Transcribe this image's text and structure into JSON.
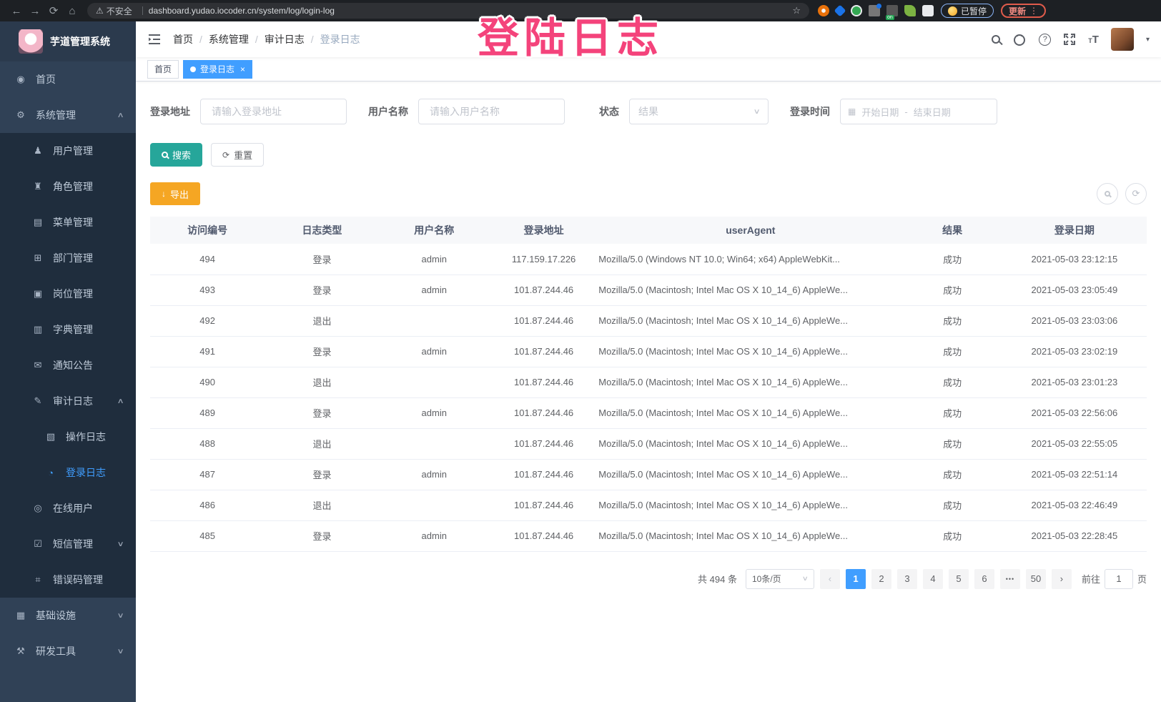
{
  "browser": {
    "security_warning": "不安全",
    "url": "dashboard.yudao.iocoder.cn/system/log/login-log",
    "extensions_badge": "on",
    "paused_badge": "已暂停",
    "update_button": "更新"
  },
  "annotation": {
    "text": "登陆日志",
    "color": "#F4437B"
  },
  "icons": {
    "back": "←",
    "forward": "→",
    "reload": "⟳",
    "home": "⌂",
    "warning": "⚠",
    "star": "☆",
    "kebab": "⋮",
    "close": "×",
    "chevron_up": "∧",
    "chevron_down": "∨",
    "breadcrumb_sep": "/",
    "calendar": "▦",
    "download": "↓",
    "reset": "⟳",
    "refresh": "⟳",
    "prev": "‹",
    "next": "›",
    "caret_down": "▾",
    "help": "?",
    "font_large": "T",
    "font_small": "T"
  },
  "sidebar": {
    "logo_title": "芋道管理系统",
    "items": [
      {
        "id": "home",
        "label": "首页",
        "icon_name": "dashboard-icon",
        "glyph": "◉",
        "level": 1
      },
      {
        "id": "system",
        "label": "系统管理",
        "icon_name": "gear-icon",
        "glyph": "⚙",
        "level": 1,
        "arrow": "up"
      },
      {
        "id": "user",
        "label": "用户管理",
        "icon_name": "user-icon",
        "glyph": "♟",
        "level": 2
      },
      {
        "id": "role",
        "label": "角色管理",
        "icon_name": "role-icon",
        "glyph": "♜",
        "level": 2
      },
      {
        "id": "menu",
        "label": "菜单管理",
        "icon_name": "menu-tree-icon",
        "glyph": "▤",
        "level": 2
      },
      {
        "id": "dept",
        "label": "部门管理",
        "icon_name": "org-tree-icon",
        "glyph": "⊞",
        "level": 2
      },
      {
        "id": "post",
        "label": "岗位管理",
        "icon_name": "badge-icon",
        "glyph": "▣",
        "level": 2
      },
      {
        "id": "dict",
        "label": "字典管理",
        "icon_name": "dict-icon",
        "glyph": "▥",
        "level": 2
      },
      {
        "id": "notice",
        "label": "通知公告",
        "icon_name": "message-icon",
        "glyph": "✉",
        "level": 2
      },
      {
        "id": "audit",
        "label": "审计日志",
        "icon_name": "audit-icon",
        "glyph": "✎",
        "level": 2,
        "arrow": "up"
      },
      {
        "id": "operlog",
        "label": "操作日志",
        "icon_name": "document-icon",
        "glyph": "▧",
        "level": 3
      },
      {
        "id": "loginlog",
        "label": "登录日志",
        "icon_name": "login-log-icon",
        "glyph": "◔",
        "level": 3,
        "active": true
      },
      {
        "id": "online",
        "label": "在线用户",
        "icon_name": "online-icon",
        "glyph": "◎",
        "level": 2
      },
      {
        "id": "sms",
        "label": "短信管理",
        "icon_name": "shield-icon",
        "glyph": "☑",
        "level": 2,
        "arrow": "down"
      },
      {
        "id": "errcode",
        "label": "错误码管理",
        "icon_name": "code-icon",
        "glyph": "⌗",
        "level": 2
      },
      {
        "id": "infra",
        "label": "基础设施",
        "icon_name": "monitor-icon",
        "glyph": "▦",
        "level": 1,
        "arrow": "down"
      },
      {
        "id": "tool",
        "label": "研发工具",
        "icon_name": "tool-icon",
        "glyph": "⚒",
        "level": 1,
        "arrow": "down"
      }
    ]
  },
  "breadcrumb": [
    "首页",
    "系统管理",
    "审计日志",
    "登录日志"
  ],
  "tags": [
    {
      "label": "首页",
      "active": false,
      "closable": false
    },
    {
      "label": "登录日志",
      "active": true,
      "closable": true
    }
  ],
  "filters": {
    "address_label": "登录地址",
    "address_placeholder": "请输入登录地址",
    "username_label": "用户名称",
    "username_placeholder": "请输入用户名称",
    "status_label": "状态",
    "status_placeholder": "结果",
    "time_label": "登录时间",
    "start_placeholder": "开始日期",
    "range_separator": "-",
    "end_placeholder": "结束日期",
    "search_label": "搜索",
    "reset_label": "重置"
  },
  "toolbar": {
    "export_label": "导出"
  },
  "table": {
    "headers": [
      "访问编号",
      "日志类型",
      "用户名称",
      "登录地址",
      "userAgent",
      "结果",
      "登录日期"
    ],
    "rows": [
      [
        "494",
        "登录",
        "admin",
        "117.159.17.226",
        "Mozilla/5.0 (Windows NT 10.0; Win64; x64) AppleWebKit...",
        "成功",
        "2021-05-03 23:12:15"
      ],
      [
        "493",
        "登录",
        "admin",
        "101.87.244.46",
        "Mozilla/5.0 (Macintosh; Intel Mac OS X 10_14_6) AppleWe...",
        "成功",
        "2021-05-03 23:05:49"
      ],
      [
        "492",
        "退出",
        "",
        "101.87.244.46",
        "Mozilla/5.0 (Macintosh; Intel Mac OS X 10_14_6) AppleWe...",
        "成功",
        "2021-05-03 23:03:06"
      ],
      [
        "491",
        "登录",
        "admin",
        "101.87.244.46",
        "Mozilla/5.0 (Macintosh; Intel Mac OS X 10_14_6) AppleWe...",
        "成功",
        "2021-05-03 23:02:19"
      ],
      [
        "490",
        "退出",
        "",
        "101.87.244.46",
        "Mozilla/5.0 (Macintosh; Intel Mac OS X 10_14_6) AppleWe...",
        "成功",
        "2021-05-03 23:01:23"
      ],
      [
        "489",
        "登录",
        "admin",
        "101.87.244.46",
        "Mozilla/5.0 (Macintosh; Intel Mac OS X 10_14_6) AppleWe...",
        "成功",
        "2021-05-03 22:56:06"
      ],
      [
        "488",
        "退出",
        "",
        "101.87.244.46",
        "Mozilla/5.0 (Macintosh; Intel Mac OS X 10_14_6) AppleWe...",
        "成功",
        "2021-05-03 22:55:05"
      ],
      [
        "487",
        "登录",
        "admin",
        "101.87.244.46",
        "Mozilla/5.0 (Macintosh; Intel Mac OS X 10_14_6) AppleWe...",
        "成功",
        "2021-05-03 22:51:14"
      ],
      [
        "486",
        "退出",
        "",
        "101.87.244.46",
        "Mozilla/5.0 (Macintosh; Intel Mac OS X 10_14_6) AppleWe...",
        "成功",
        "2021-05-03 22:46:49"
      ],
      [
        "485",
        "登录",
        "admin",
        "101.87.244.46",
        "Mozilla/5.0 (Macintosh; Intel Mac OS X 10_14_6) AppleWe...",
        "成功",
        "2021-05-03 22:28:45"
      ]
    ]
  },
  "pagination": {
    "total": "共 494 条",
    "page_size": "10条/页",
    "pages": [
      {
        "label": "1",
        "active": true
      },
      {
        "label": "2"
      },
      {
        "label": "3"
      },
      {
        "label": "4"
      },
      {
        "label": "5"
      },
      {
        "label": "6"
      },
      {
        "label": "•••",
        "ellipsis": true
      },
      {
        "label": "50"
      }
    ],
    "goto_label": "前往",
    "goto_value": "1",
    "page_label": "页"
  },
  "colors": {
    "accent": "#409EFF",
    "search_button": "#26A69A",
    "export_button": "#F5A623",
    "sidebar_bg": "#304156",
    "submenu_bg": "#1F2D3D",
    "annotation": "#F4437B",
    "active_tag": "#409EFF"
  }
}
